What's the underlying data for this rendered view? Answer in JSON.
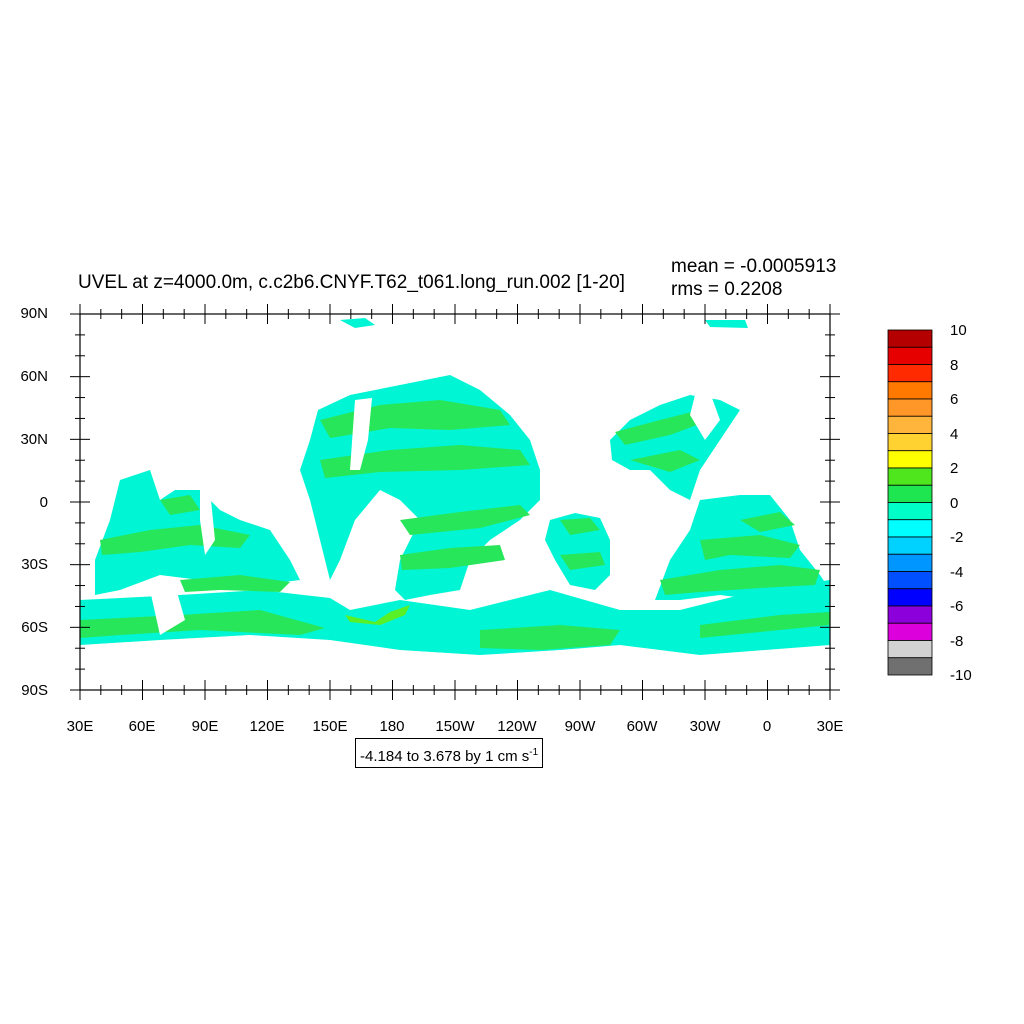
{
  "title": "UVEL at z=4000.0m, c.c2b6.CNYF.T62_t061.long_run.002 [1-20]",
  "stats": {
    "mean": "mean = -0.0005913",
    "rms": "rms = 0.2208"
  },
  "lat_labels": [
    "90N",
    "60N",
    "30N",
    "0",
    "30S",
    "60S",
    "90S"
  ],
  "lon_labels": [
    "30E",
    "60E",
    "90E",
    "120E",
    "150E",
    "180",
    "150W",
    "120W",
    "90W",
    "60W",
    "30W",
    "0",
    "30E"
  ],
  "contour_info": {
    "text": "-4.184 to 3.678 by 1 cm s",
    "superscript": "-1"
  },
  "colorbar": {
    "labels": [
      "10",
      "8",
      "6",
      "4",
      "2",
      "0",
      "-2",
      "-4",
      "-6",
      "-8",
      "-10"
    ],
    "colors": [
      "#b40000",
      "#e60000",
      "#ff2a00",
      "#ff7800",
      "#ff9628",
      "#ffb43c",
      "#ffd232",
      "#ffff00",
      "#50e61e",
      "#1ee650",
      "#00ffc8",
      "#00ffff",
      "#00d2ff",
      "#0096ff",
      "#0050ff",
      "#0000ff",
      "#8c00dc",
      "#dc00dc",
      "#d2d2d2",
      "#707070"
    ]
  },
  "map": {
    "ocean_color_main": "#00f5d4",
    "ocean_color_positive": "#28e65a",
    "ocean_color_positive_light": "#5af028"
  }
}
